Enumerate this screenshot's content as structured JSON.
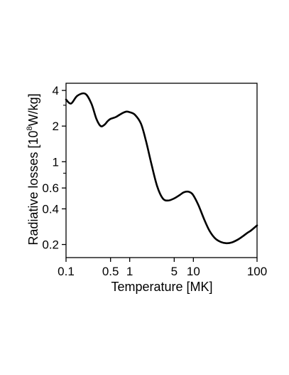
{
  "chart_data": {
    "type": "line",
    "title": "",
    "xlabel": "Temperature [MK]",
    "ylabel": {
      "prefix": "Radiative losses [10",
      "superscript": "8",
      "suffix": "W/kg]"
    },
    "x_scale": "log",
    "y_scale": "log",
    "xlim": [
      0.1,
      100
    ],
    "ylim": [
      0.155,
      4.6
    ],
    "x_ticks": [
      {
        "value": 0.1,
        "label": "0.1"
      },
      {
        "value": 0.5,
        "label": "0.5"
      },
      {
        "value": 1,
        "label": "1"
      },
      {
        "value": 5,
        "label": "5"
      },
      {
        "value": 10,
        "label": "10"
      },
      {
        "value": 100,
        "label": "100"
      }
    ],
    "y_ticks": [
      {
        "value": 0.2,
        "label": "0.2"
      },
      {
        "value": 0.4,
        "label": "0.4"
      },
      {
        "value": 0.6,
        "label": "0.6"
      },
      {
        "value": 1,
        "label": "1"
      },
      {
        "value": 2,
        "label": "2"
      },
      {
        "value": 4,
        "label": "4"
      }
    ],
    "grid": false,
    "line_color": "#000000",
    "series": [
      {
        "x": [
          0.1,
          0.12,
          0.15,
          0.2,
          0.25,
          0.3,
          0.35,
          0.4,
          0.45,
          0.5,
          0.6,
          0.7,
          0.8,
          0.9,
          1.0,
          1.2,
          1.5,
          1.8,
          2.2,
          2.7,
          3.3,
          4.0,
          5.0,
          6.0,
          7.0,
          8.0,
          9.0,
          10.0,
          12.0,
          15.0,
          18.0,
          22.0,
          27.0,
          33.0,
          40.0,
          50.0,
          60.0,
          70.0,
          80.0,
          100.0
        ],
        "y": [
          3.35,
          3.1,
          3.6,
          3.75,
          3.1,
          2.3,
          2.0,
          2.05,
          2.2,
          2.3,
          2.38,
          2.5,
          2.6,
          2.65,
          2.62,
          2.5,
          2.1,
          1.5,
          0.95,
          0.62,
          0.49,
          0.47,
          0.49,
          0.52,
          0.55,
          0.56,
          0.55,
          0.52,
          0.43,
          0.32,
          0.26,
          0.225,
          0.21,
          0.205,
          0.208,
          0.22,
          0.235,
          0.25,
          0.262,
          0.29
        ]
      }
    ]
  }
}
